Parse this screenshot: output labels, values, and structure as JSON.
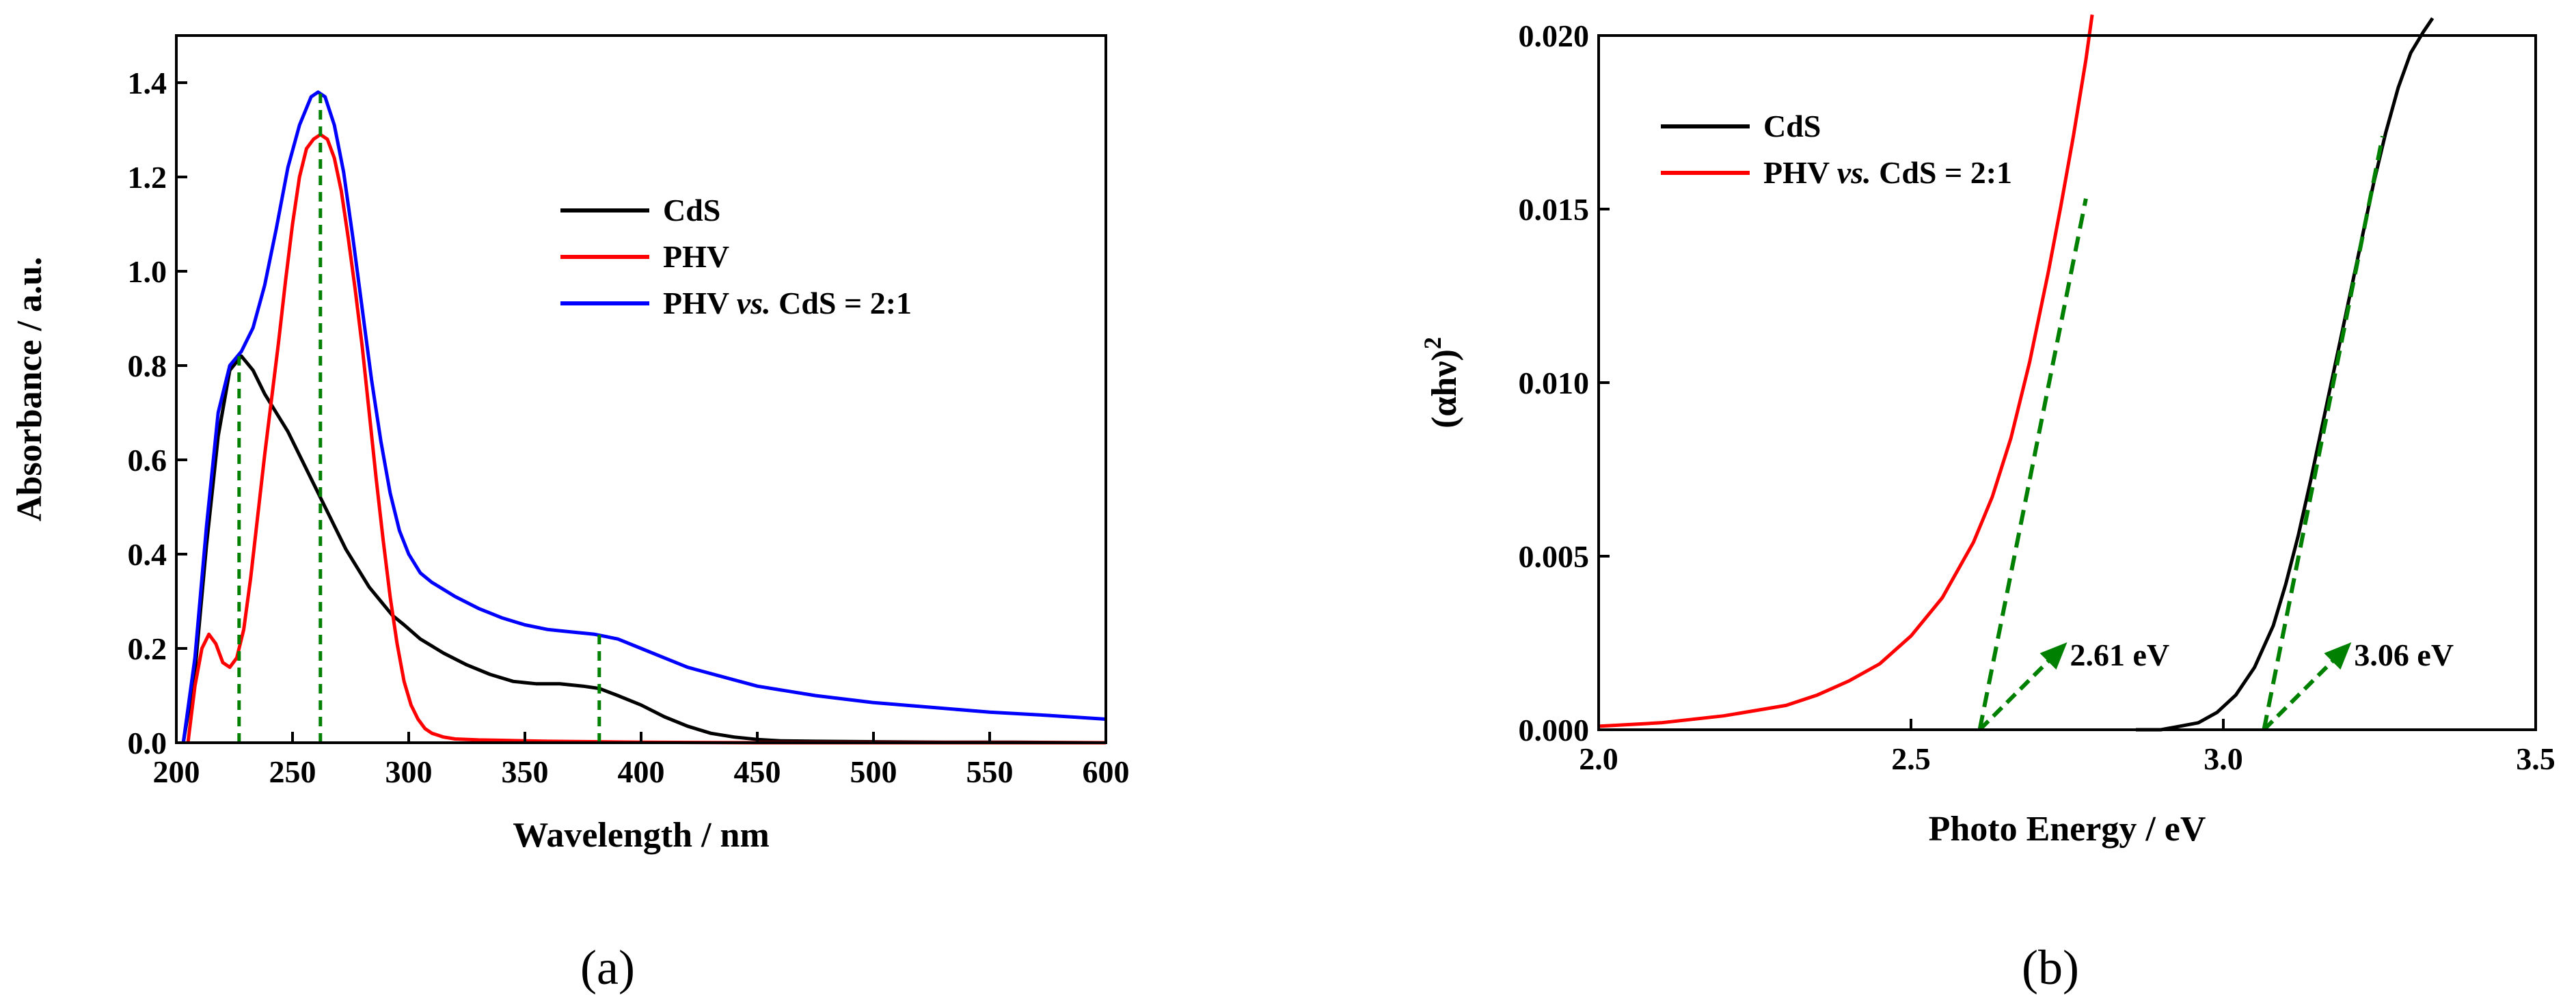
{
  "chart_data": [
    {
      "type": "line",
      "panel_label": "(a)",
      "xlabel": "Wavelength / nm",
      "ylabel": "Absorbance / a.u.",
      "xlim": [
        200,
        600
      ],
      "ylim": [
        0,
        1.5
      ],
      "xticks": [
        "200",
        "250",
        "300",
        "350",
        "400",
        "450",
        "500",
        "550",
        "600"
      ],
      "yticks": [
        "0.0",
        "0.2",
        "0.4",
        "0.6",
        "0.8",
        "1.0",
        "1.2",
        "1.4"
      ],
      "legend_position": "top-right",
      "series": [
        {
          "name": "CdS",
          "color": "#000000",
          "x": [
            203,
            208,
            213,
            218,
            223,
            228,
            233,
            238,
            243,
            248,
            253,
            258,
            263,
            268,
            273,
            278,
            283,
            288,
            293,
            298,
            305,
            315,
            325,
            335,
            345,
            355,
            365,
            375,
            382,
            390,
            400,
            410,
            420,
            430,
            440,
            450,
            460,
            475,
            500,
            530,
            560,
            600
          ],
          "y": [
            0.0,
            0.15,
            0.42,
            0.65,
            0.79,
            0.82,
            0.79,
            0.74,
            0.7,
            0.66,
            0.61,
            0.56,
            0.51,
            0.46,
            0.41,
            0.37,
            0.33,
            0.3,
            0.27,
            0.25,
            0.22,
            0.19,
            0.165,
            0.145,
            0.13,
            0.125,
            0.125,
            0.12,
            0.115,
            0.1,
            0.08,
            0.055,
            0.035,
            0.02,
            0.012,
            0.007,
            0.004,
            0.003,
            0.002,
            0.001,
            0.001,
            0.0
          ]
        },
        {
          "name": "PHV",
          "color": "#ff0000",
          "x": [
            205,
            208,
            211,
            214,
            217,
            220,
            223,
            226,
            229,
            232,
            235,
            238,
            241,
            244,
            247,
            250,
            253,
            256,
            259,
            262,
            265,
            268,
            271,
            274,
            277,
            280,
            283,
            286,
            289,
            292,
            295,
            298,
            301,
            304,
            307,
            310,
            315,
            320,
            330,
            340,
            360,
            400,
            450,
            500,
            600
          ],
          "y": [
            0.0,
            0.12,
            0.2,
            0.23,
            0.21,
            0.17,
            0.16,
            0.18,
            0.24,
            0.35,
            0.48,
            0.61,
            0.73,
            0.85,
            0.98,
            1.1,
            1.2,
            1.26,
            1.28,
            1.29,
            1.28,
            1.24,
            1.17,
            1.07,
            0.96,
            0.84,
            0.7,
            0.56,
            0.43,
            0.31,
            0.21,
            0.13,
            0.08,
            0.05,
            0.03,
            0.02,
            0.012,
            0.008,
            0.006,
            0.005,
            0.003,
            0.001,
            0.0,
            0.0,
            0.0
          ]
        },
        {
          "name": "PHV vs. CdS = 2:1",
          "color": "#0000ff",
          "x": [
            203,
            208,
            213,
            218,
            223,
            228,
            233,
            238,
            243,
            248,
            253,
            258,
            261,
            264,
            268,
            272,
            276,
            280,
            284,
            288,
            292,
            296,
            300,
            305,
            310,
            320,
            330,
            340,
            350,
            360,
            370,
            380,
            390,
            400,
            410,
            420,
            435,
            450,
            475,
            500,
            525,
            550,
            575,
            600
          ],
          "y": [
            0.0,
            0.18,
            0.46,
            0.7,
            0.8,
            0.83,
            0.88,
            0.97,
            1.09,
            1.22,
            1.31,
            1.37,
            1.38,
            1.37,
            1.31,
            1.21,
            1.07,
            0.92,
            0.77,
            0.64,
            0.53,
            0.45,
            0.4,
            0.36,
            0.34,
            0.31,
            0.285,
            0.265,
            0.25,
            0.24,
            0.235,
            0.23,
            0.22,
            0.2,
            0.18,
            0.16,
            0.14,
            0.12,
            0.1,
            0.085,
            0.075,
            0.065,
            0.058,
            0.05
          ]
        }
      ],
      "guides": [
        {
          "type": "vline",
          "x": 227,
          "y_top": 0.82,
          "color": "#008000"
        },
        {
          "type": "vline",
          "x": 262,
          "y_top": 1.38,
          "color": "#008000"
        },
        {
          "type": "vline",
          "x": 382,
          "y_top": 0.24,
          "color": "#008000"
        }
      ]
    },
    {
      "type": "line",
      "panel_label": "(b)",
      "xlabel": "Photo Energy / eV",
      "ylabel_main": "(αhν)",
      "ylabel_sup": "2",
      "xlim": [
        2.0,
        3.5
      ],
      "ylim": [
        0,
        0.02
      ],
      "xticks": [
        "2.0",
        "2.5",
        "3.0",
        "3.5"
      ],
      "yticks": [
        "0.000",
        "0.005",
        "0.010",
        "0.015",
        "0.020"
      ],
      "legend_position": "top-left",
      "series": [
        {
          "name": "CdS",
          "color": "#000000",
          "x": [
            2.86,
            2.9,
            2.93,
            2.96,
            2.99,
            3.02,
            3.05,
            3.08,
            3.1,
            3.12,
            3.14,
            3.16,
            3.18,
            3.2,
            3.22,
            3.24,
            3.26,
            3.28,
            3.3,
            3.32,
            3.335
          ],
          "y": [
            0.0,
            0.0,
            0.0001,
            0.0002,
            0.0005,
            0.001,
            0.0018,
            0.003,
            0.0042,
            0.0056,
            0.0072,
            0.0089,
            0.0106,
            0.0123,
            0.014,
            0.0157,
            0.0172,
            0.0185,
            0.0195,
            0.0201,
            0.0205
          ]
        },
        {
          "name": "PHV vs. CdS = 2:1",
          "color": "#ff0000",
          "x": [
            2.0,
            2.1,
            2.2,
            2.3,
            2.35,
            2.4,
            2.45,
            2.5,
            2.55,
            2.6,
            2.63,
            2.66,
            2.69,
            2.72,
            2.74,
            2.76,
            2.78,
            2.79
          ],
          "y": [
            0.0001,
            0.0002,
            0.0004,
            0.0007,
            0.001,
            0.0014,
            0.0019,
            0.0027,
            0.0038,
            0.0054,
            0.0067,
            0.0084,
            0.0106,
            0.0132,
            0.0151,
            0.0171,
            0.0193,
            0.0206
          ]
        }
      ],
      "guides": [
        {
          "type": "tangent",
          "x": [
            2.61,
            2.78
          ],
          "y": [
            0.0,
            0.0153
          ],
          "color": "#008000"
        },
        {
          "type": "tangent",
          "x": [
            3.065,
            3.255
          ],
          "y": [
            0.0,
            0.0171
          ],
          "color": "#008000"
        }
      ],
      "annotations": [
        {
          "text": "2.61 eV",
          "x": 2.61,
          "y": 0.0,
          "color": "#008000"
        },
        {
          "text": "3.06 eV",
          "x": 3.065,
          "y": 0.0,
          "color": "#008000"
        }
      ]
    }
  ]
}
